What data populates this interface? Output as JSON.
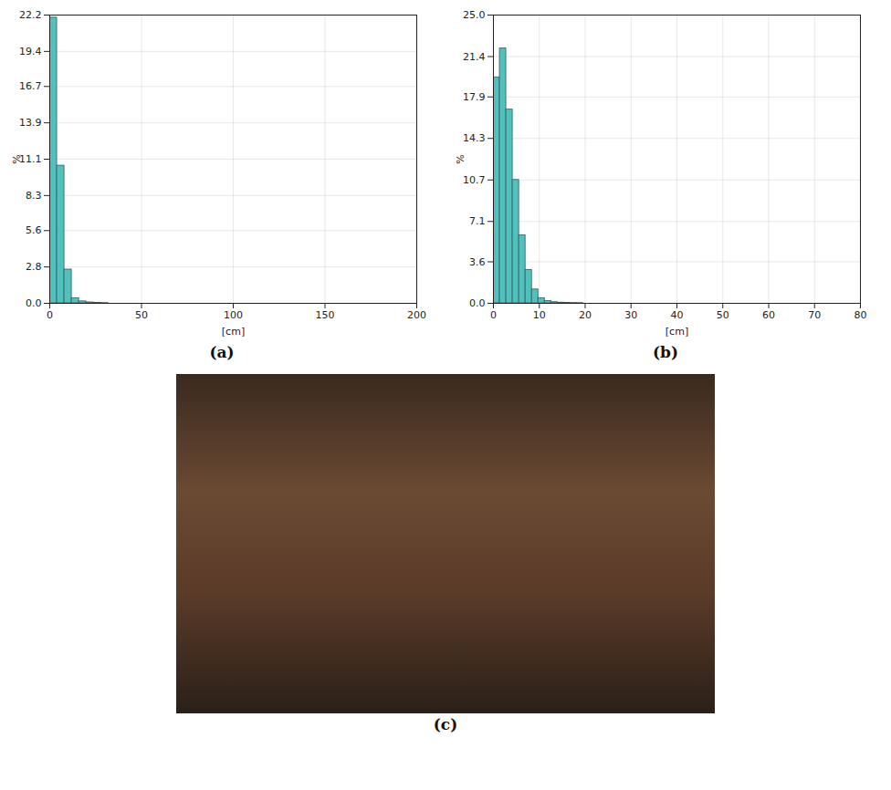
{
  "chart_data": [
    {
      "type": "histogram",
      "caption": "(a)",
      "xlabel": "[cm]",
      "ylabel": "%",
      "bins": [
        0,
        4,
        8,
        12,
        16,
        20,
        24,
        28,
        32
      ],
      "values": [
        22.0,
        10.6,
        2.6,
        0.4,
        0.15,
        0.07,
        0.04,
        0.02
      ],
      "color": "#52c0bd",
      "grid": true,
      "xlim": [
        0,
        200
      ],
      "xticks": [
        0,
        50,
        100,
        150,
        200
      ],
      "ylim": [
        0,
        22.2
      ],
      "yticks": [
        {
          "value": 0,
          "label": "0.0"
        },
        2.8,
        5.6,
        8.3,
        11.1,
        13.9,
        16.7,
        19.4,
        22.2
      ]
    },
    {
      "type": "histogram",
      "caption": "(b)",
      "xlabel": "[cm]",
      "ylabel": "%",
      "bins": [
        0,
        1.4,
        2.8,
        4.2,
        5.6,
        7.0,
        8.4,
        9.8,
        11.2,
        12.6,
        14.0,
        15.4,
        16.8,
        18.2,
        19.6
      ],
      "values": [
        19.6,
        22.1,
        16.8,
        10.7,
        5.9,
        2.9,
        1.2,
        0.45,
        0.2,
        0.1,
        0.06,
        0.04,
        0.03,
        0.02
      ],
      "color": "#52c0bd",
      "grid": true,
      "xlim": [
        0,
        80
      ],
      "xticks": [
        0,
        10,
        20,
        30,
        40,
        50,
        60,
        70,
        80
      ],
      "ylim": [
        0,
        25
      ],
      "yticks": [
        {
          "value": 0,
          "label": "0.0"
        },
        3.6,
        7.1,
        10.7,
        14.3,
        17.9,
        21.4,
        {
          "value": 25,
          "label": "25.0"
        }
      ]
    }
  ],
  "photo": {
    "caption": "(c)"
  }
}
